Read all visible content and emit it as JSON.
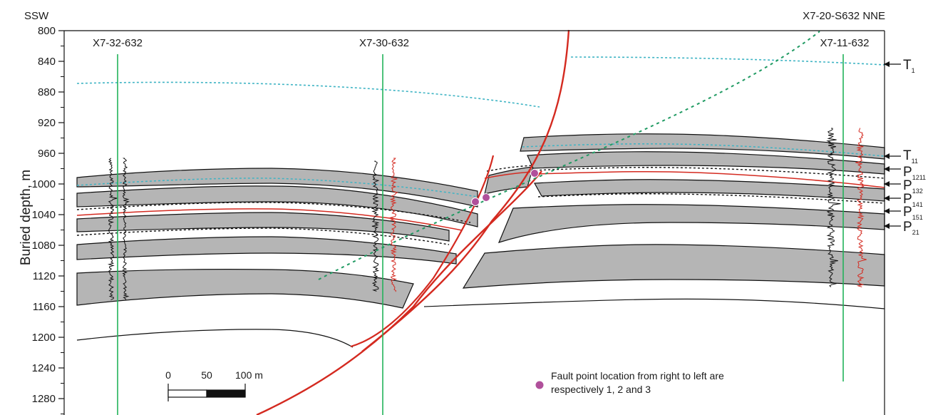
{
  "header": {
    "left_direction": "SSW",
    "right_label": "X7-20-S632 NNE"
  },
  "axis": {
    "ylabel": "Buried depth, m",
    "ticks": [
      "800",
      "840",
      "880",
      "920",
      "960",
      "1000",
      "1040",
      "1080",
      "1120",
      "1160",
      "1200",
      "1240",
      "1280"
    ],
    "depth_min": 800,
    "depth_max": 1280,
    "extends_to_depth": 1300
  },
  "wells": [
    {
      "name": "X7-32-632"
    },
    {
      "name": "X7-30-632"
    },
    {
      "name": "X7-11-632"
    }
  ],
  "horizons": [
    {
      "main": "T",
      "sub": "1"
    },
    {
      "main": "T",
      "sub": "11"
    },
    {
      "main": "P",
      "sub": "1211"
    },
    {
      "main": "P",
      "sub": "132"
    },
    {
      "main": "P",
      "sub": "141"
    },
    {
      "main": "P",
      "sub": "151"
    },
    {
      "main": "P",
      "sub": "21"
    }
  ],
  "scale_bar": {
    "ticks": [
      "0",
      "50",
      "100 m"
    ]
  },
  "legend": {
    "line1": "Fault point location from right to left are",
    "line2": "respectively 1, 2 and 3",
    "dot_color": "#b0509b"
  },
  "colors": {
    "fault": "#d42a20",
    "well": "#22b25a",
    "dashed_well": "#1f9a62",
    "horizon_t1": "#3fb4c4",
    "shale": "#b5b5b5",
    "red_log": "#d42a20"
  }
}
